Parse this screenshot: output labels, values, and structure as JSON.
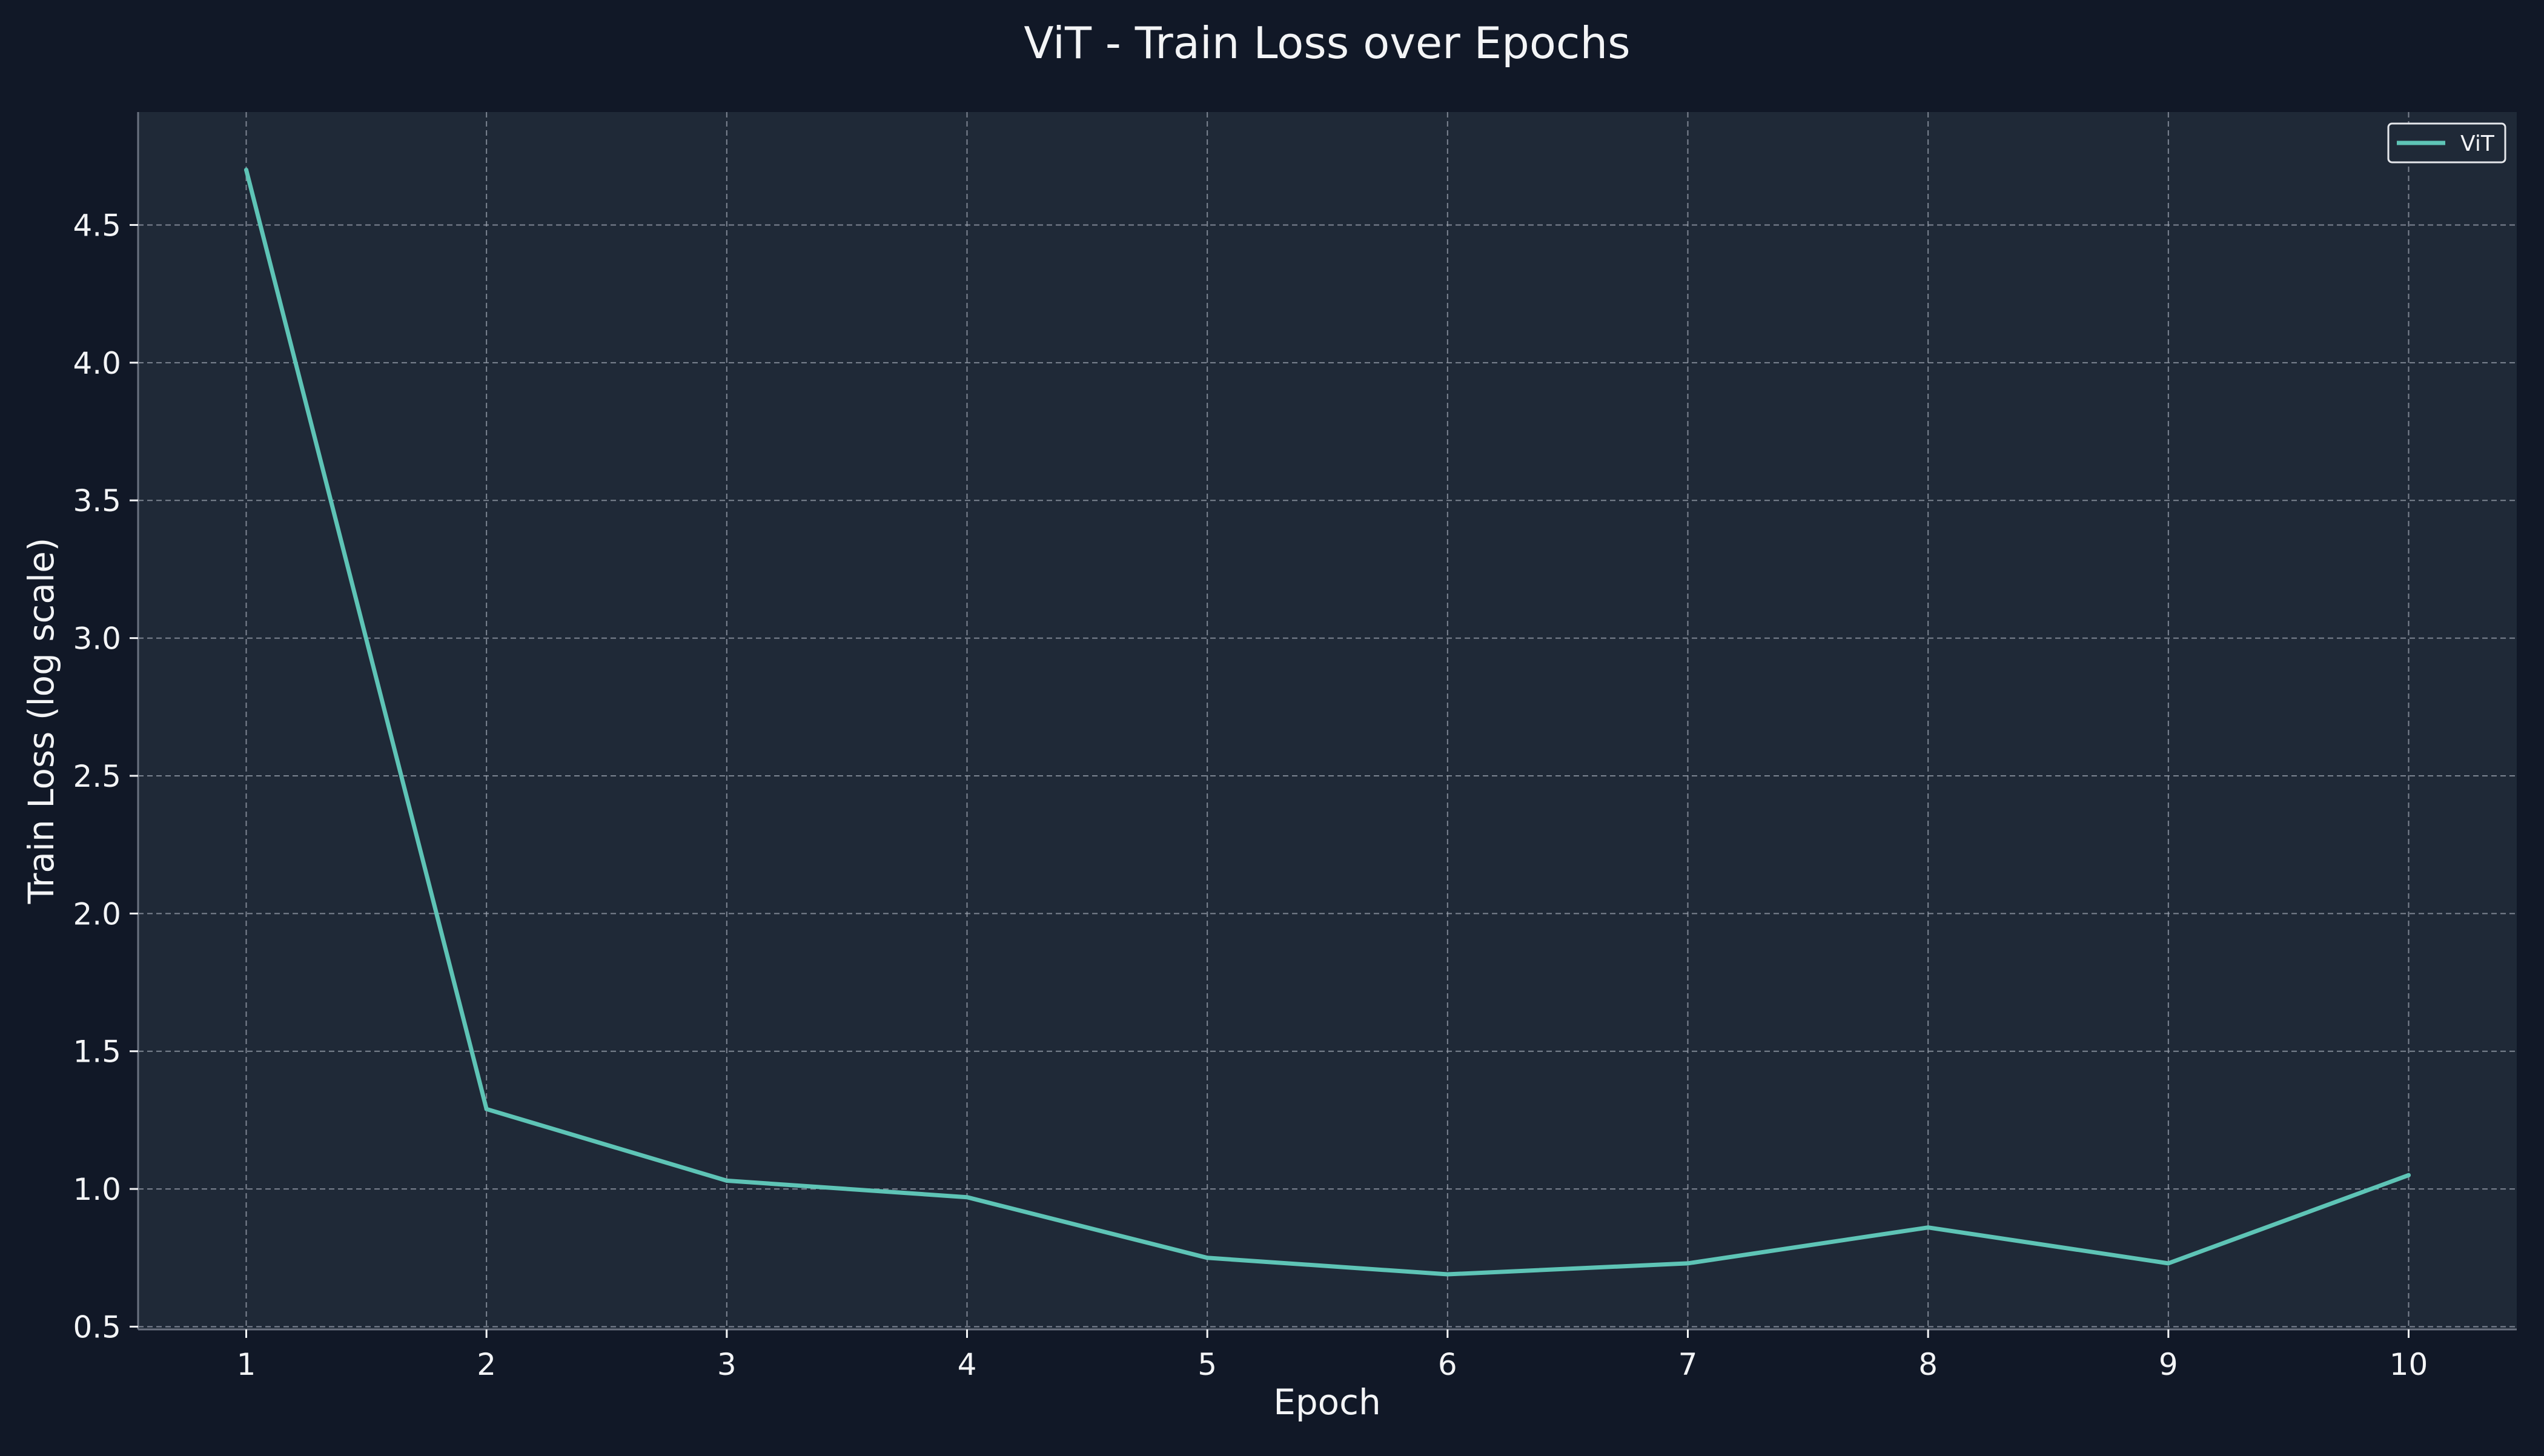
{
  "chart_data": {
    "type": "line",
    "title": "ViT - Train Loss over Epochs",
    "xlabel": "Epoch",
    "ylabel": "Train Loss (log scale)",
    "x": [
      1,
      2,
      3,
      4,
      5,
      6,
      7,
      8,
      9,
      10
    ],
    "x_ticks": [
      "1",
      "2",
      "3",
      "4",
      "5",
      "6",
      "7",
      "8",
      "9",
      "10"
    ],
    "y_ticks": [
      "0.5",
      "1.0",
      "1.5",
      "2.0",
      "2.5",
      "3.0",
      "3.5",
      "4.0",
      "4.5"
    ],
    "y_tick_values": [
      0.5,
      1.0,
      1.5,
      2.0,
      2.5,
      3.0,
      3.5,
      4.0,
      4.5
    ],
    "xlim": [
      0.55,
      10.45
    ],
    "ylim": [
      0.49,
      4.91
    ],
    "grid": true,
    "legend_position": "top-right",
    "series": [
      {
        "name": "ViT",
        "color": "#5ec4b6",
        "values": [
          4.7,
          1.29,
          1.03,
          0.97,
          0.75,
          0.69,
          0.73,
          0.86,
          0.73,
          1.05
        ]
      }
    ],
    "colors": {
      "figure_bg": "#111827",
      "axes_bg": "#1f2937",
      "grid": "#9ca3af",
      "text": "#f3f4f6",
      "spine": "#6b7280"
    }
  }
}
